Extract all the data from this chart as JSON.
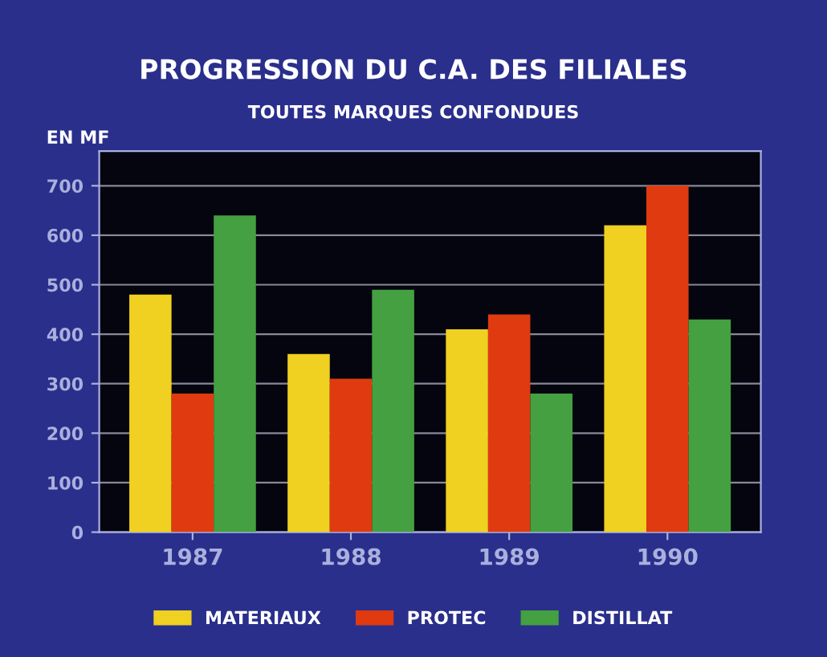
{
  "chart_data": {
    "type": "bar",
    "title": "PROGRESSION DU C.A. DES FILIALES",
    "subtitle": "TOUTES MARQUES CONFONDUES",
    "ylabel": "EN MF",
    "categories": [
      "1987",
      "1988",
      "1989",
      "1990"
    ],
    "series": [
      {
        "name": "MATERIAUX",
        "color": "#f0d020",
        "values": [
          480,
          360,
          410,
          620
        ]
      },
      {
        "name": "PROTEC",
        "color": "#e03a10",
        "values": [
          280,
          310,
          440,
          700
        ]
      },
      {
        "name": "DISTILLAT",
        "color": "#44a040",
        "values": [
          640,
          490,
          280,
          430
        ]
      }
    ],
    "ylim": [
      0,
      770
    ],
    "yticks": [
      0,
      100,
      200,
      300,
      400,
      500,
      600,
      700
    ],
    "grid": "y",
    "legend": "bottom"
  }
}
